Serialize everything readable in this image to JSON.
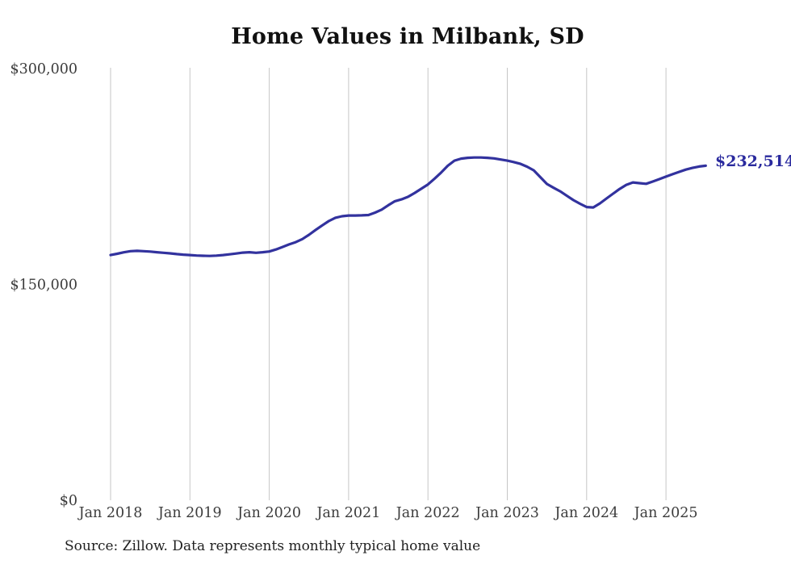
{
  "chart": {
    "title": "Home Values in Milbank, SD",
    "end_label": "$232,514",
    "source_note": "Source: Zillow. Data represents monthly typical home value",
    "colors": {
      "line": "#32329e",
      "end_label": "#2a2a9e",
      "gridline": "#c6c6c6",
      "title": "#111111",
      "tick_label": "#3c3c3c",
      "source": "#1f1f1f",
      "background": "#ffffff"
    }
  },
  "chart_data": {
    "type": "line",
    "title": "Home Values in Milbank, SD",
    "frequency": "monthly",
    "start_month": "Jan 2018",
    "end_month": "Jul 2025",
    "final_value": 232514,
    "annotation": "$232,514",
    "ylim": [
      0,
      300000
    ],
    "grid": "vertical-only",
    "legend": "none",
    "x_tick_labels": [
      "Jan 2018",
      "Jan 2019",
      "Jan 2020",
      "Jan 2021",
      "Jan 2022",
      "Jan 2023",
      "Jan 2024",
      "Jan 2025"
    ],
    "y_ticks": [
      {
        "label": "$0",
        "value": 0
      },
      {
        "label": "$150,000",
        "value": 150000
      },
      {
        "label": "$300,000",
        "value": 300000
      }
    ],
    "series": [
      {
        "name": "Typical home value",
        "values": [
          170400,
          171300,
          172300,
          173100,
          173300,
          173100,
          172800,
          172400,
          172000,
          171600,
          171100,
          170700,
          170400,
          170100,
          169900,
          169800,
          170000,
          170400,
          170900,
          171500,
          172100,
          172400,
          172000,
          172400,
          172900,
          174300,
          176000,
          177800,
          179400,
          181500,
          184500,
          187800,
          191000,
          194000,
          196300,
          197400,
          197900,
          197900,
          198000,
          198200,
          199900,
          202000,
          205000,
          207800,
          209100,
          210900,
          213600,
          216500,
          219500,
          223500,
          227800,
          232500,
          236000,
          237400,
          238000,
          238200,
          238200,
          238000,
          237600,
          236800,
          236000,
          235000,
          233800,
          231800,
          229300,
          224500,
          219800,
          217200,
          214700,
          211600,
          208600,
          206100,
          203800,
          203500,
          206300,
          209700,
          213100,
          216400,
          219200,
          220900,
          220400,
          219900,
          221500,
          223200,
          224900,
          226600,
          228200,
          229800,
          231000,
          231900,
          232514
        ]
      }
    ]
  }
}
